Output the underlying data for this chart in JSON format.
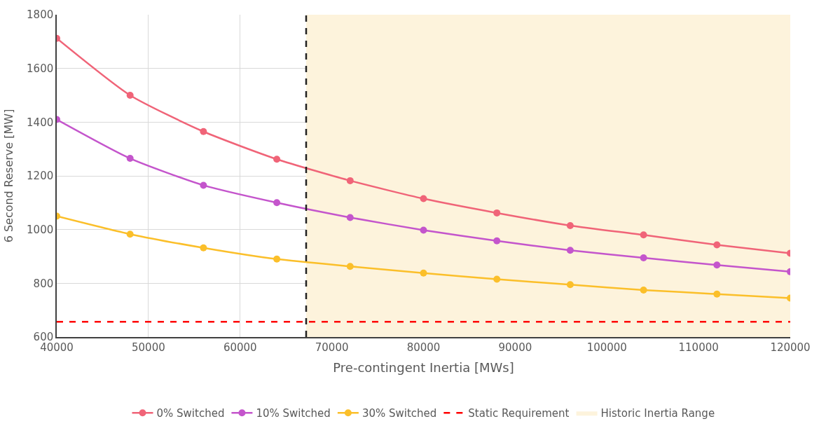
{
  "chart_data": {
    "type": "line",
    "xlabel": "Pre-contingent Inertia [MWs]",
    "ylabel": "6 Second Reserve [MW]",
    "x": [
      40000,
      48000,
      56000,
      64000,
      72000,
      80000,
      88000,
      96000,
      104000,
      112000,
      120000
    ],
    "series": [
      {
        "name": "0% Switched",
        "color": "#f06478",
        "values": [
          1712,
          1500,
          1365,
          1262,
          1182,
          1115,
          1062,
          1015,
          980,
          943,
          912
        ]
      },
      {
        "name": "10% Switched",
        "color": "#c455cc",
        "values": [
          1410,
          1265,
          1165,
          1100,
          1045,
          998,
          958,
          923,
          895,
          868,
          843
        ]
      },
      {
        "name": "30% Switched",
        "color": "#fbbf2a",
        "values": [
          1050,
          983,
          932,
          890,
          863,
          838,
          815,
          795,
          775,
          760,
          745
        ]
      }
    ],
    "ref_lines": [
      {
        "axis": "y",
        "value": 657,
        "label": "Static Requirement",
        "color": "#ff0000",
        "line_style": "dashed"
      },
      {
        "axis": "x",
        "value": 67200,
        "color": "#222222",
        "line_style": "dashed"
      }
    ],
    "bands": [
      {
        "axis": "x",
        "from": 67200,
        "to": 120000,
        "label": "Historic Inertia Range",
        "color": "#fdf3dc"
      }
    ],
    "xlim": [
      40000,
      120000
    ],
    "xticks": [
      40000,
      50000,
      60000,
      70000,
      80000,
      90000,
      100000,
      110000,
      120000
    ],
    "ylim": [
      600,
      1800
    ],
    "yticks": [
      600,
      800,
      1000,
      1200,
      1400,
      1600,
      1800
    ],
    "grid": true,
    "legend": "bottom",
    "marker": "circle",
    "line_style": "solid"
  }
}
